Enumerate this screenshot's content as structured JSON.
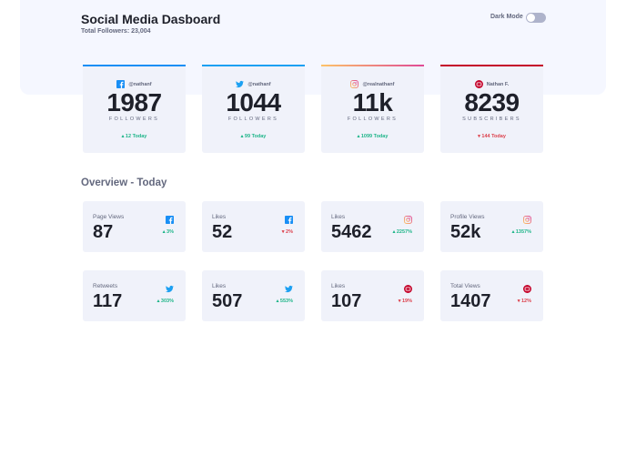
{
  "header": {
    "title": "Social Media Dasboard",
    "subtitle": "Total Followers: 23,004",
    "dark_mode_label": "Dark Mode",
    "dark_mode_on": false
  },
  "colors": {
    "facebook": "#198ff5",
    "twitter": "#1ca0f2",
    "instagram": "#df4996",
    "youtube": "#c4032a",
    "up": "#1eb589",
    "down": "#dc414c"
  },
  "cards": [
    {
      "platform": "facebook",
      "icon": "facebook-icon",
      "handle": "@nathanf",
      "count": "1987",
      "label": "FOLLOWERS",
      "today": "12 Today",
      "trend": "up"
    },
    {
      "platform": "twitter",
      "icon": "twitter-icon",
      "handle": "@nathanf",
      "count": "1044",
      "label": "FOLLOWERS",
      "today": "99 Today",
      "trend": "up"
    },
    {
      "platform": "instagram",
      "icon": "instagram-icon",
      "handle": "@realnathanf",
      "count": "11k",
      "label": "FOLLOWERS",
      "today": "1099 Today",
      "trend": "up"
    },
    {
      "platform": "youtube",
      "icon": "youtube-icon",
      "handle": "Nathan F.",
      "count": "8239",
      "label": "SUBSCRIBERS",
      "today": "144 Today",
      "trend": "down"
    }
  ],
  "overview": {
    "title": "Overview - Today",
    "items": [
      {
        "name": "Page Views",
        "platform": "facebook",
        "value": "87",
        "pct": "3%",
        "trend": "up"
      },
      {
        "name": "Likes",
        "platform": "facebook",
        "value": "52",
        "pct": "2%",
        "trend": "down"
      },
      {
        "name": "Likes",
        "platform": "instagram",
        "value": "5462",
        "pct": "2257%",
        "trend": "up"
      },
      {
        "name": "Profile Views",
        "platform": "instagram",
        "value": "52k",
        "pct": "1357%",
        "trend": "up"
      },
      {
        "name": "Retweets",
        "platform": "twitter",
        "value": "117",
        "pct": "303%",
        "trend": "up"
      },
      {
        "name": "Likes",
        "platform": "twitter",
        "value": "507",
        "pct": "553%",
        "trend": "up"
      },
      {
        "name": "Likes",
        "platform": "youtube",
        "value": "107",
        "pct": "19%",
        "trend": "down"
      },
      {
        "name": "Total Views",
        "platform": "youtube",
        "value": "1407",
        "pct": "12%",
        "trend": "down"
      }
    ]
  }
}
